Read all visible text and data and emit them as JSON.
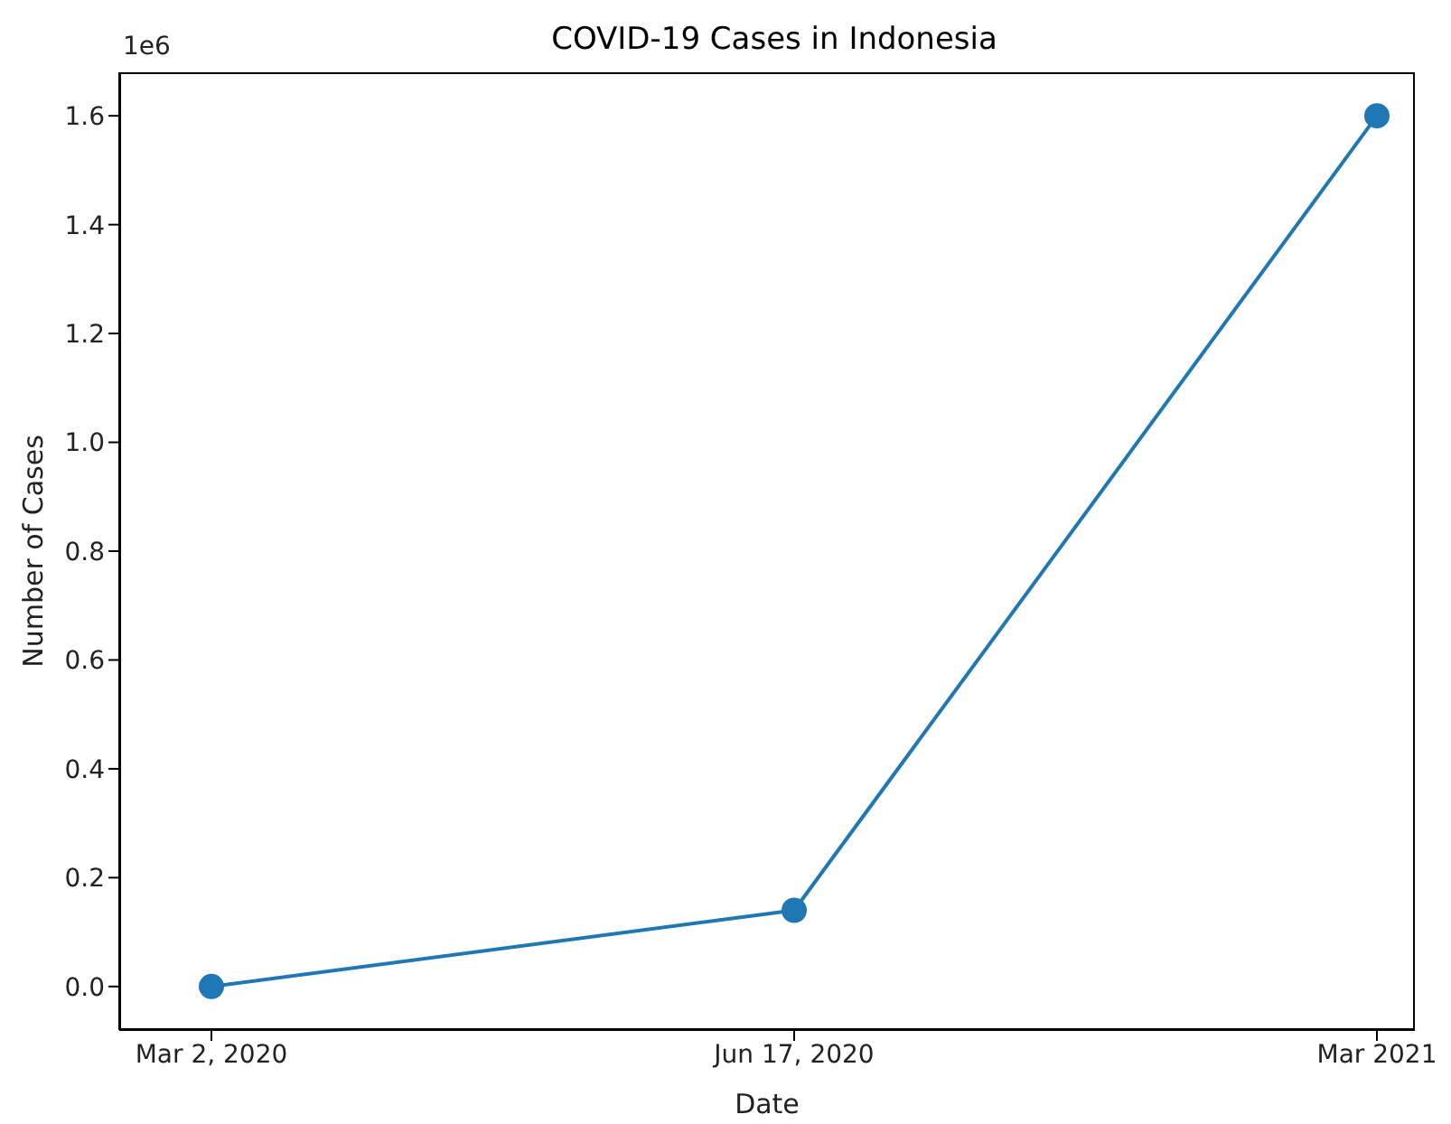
{
  "chart_data": {
    "type": "line",
    "title": "COVID-19 Cases in Indonesia",
    "xlabel": "Date",
    "ylabel": "Number of Cases",
    "categories": [
      "Mar 2, 2020",
      "Jun 17, 2020",
      "Mar 2021"
    ],
    "series": [
      {
        "color": "#1f77b4",
        "values": [
          0,
          0.14,
          1.6
        ]
      }
    ],
    "ylim": [
      -0.08,
      1.68
    ],
    "yticks": [
      {
        "value": 0,
        "label": "0.0"
      },
      0.2,
      0.4,
      0.6,
      0.8,
      {
        "value": 1,
        "label": "1.0"
      },
      1.2,
      1.4,
      1.6
    ],
    "annotations": [
      "1e6"
    ],
    "marker": "circle",
    "line_style": "solid",
    "grid": false,
    "legend": false
  }
}
